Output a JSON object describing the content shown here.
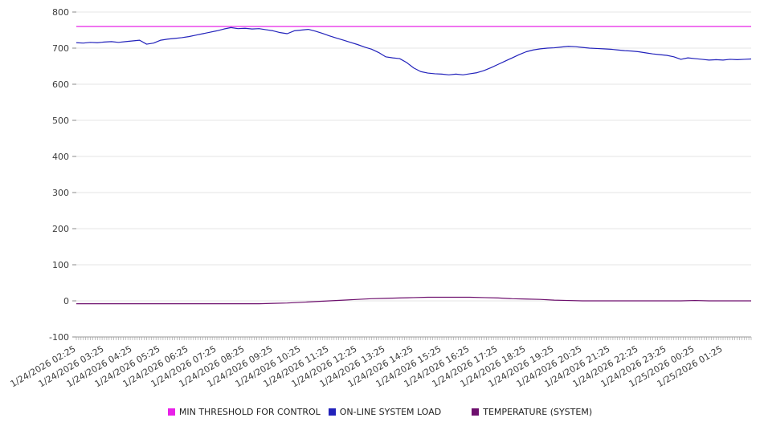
{
  "chart_data": {
    "type": "line",
    "title": "",
    "grid": true,
    "legend_position": "bottom",
    "background_color": "#ffffff",
    "x_axis": {
      "hours_span": 24,
      "tick_interval_hours": 1,
      "tick_labels": [
        "1/24/2026 02:25",
        "1/24/2026 03:25",
        "1/24/2026 04:25",
        "1/24/2026 05:25",
        "1/24/2026 06:25",
        "1/24/2026 07:25",
        "1/24/2026 08:25",
        "1/24/2026 09:25",
        "1/24/2026 10:25",
        "1/24/2026 11:25",
        "1/24/2026 12:25",
        "1/24/2026 13:25",
        "1/24/2026 14:25",
        "1/24/2026 15:25",
        "1/24/2026 16:25",
        "1/24/2026 17:25",
        "1/24/2026 18:25",
        "1/24/2026 19:25",
        "1/24/2026 20:25",
        "1/24/2026 21:25",
        "1/24/2026 22:25",
        "1/24/2026 23:25",
        "1/25/2026 00:25",
        "1/25/2026 01:25"
      ]
    },
    "y_axis": {
      "min": -100,
      "max": 800,
      "tick_step": 100,
      "tick_labels": [
        "800",
        "700",
        "600",
        "500",
        "400",
        "300",
        "200",
        "100",
        "0",
        "-100"
      ]
    },
    "series": [
      {
        "name": "MIN THRESHOLD FOR CONTROL",
        "color": "#e821e8",
        "value": 760
      },
      {
        "name": "ON-LINE SYSTEM LOAD",
        "color": "#2222bb",
        "step_hours": 0.25,
        "values": [
          715,
          714,
          716,
          715,
          717,
          718,
          716,
          718,
          720,
          722,
          711,
          714,
          722,
          725,
          727,
          729,
          732,
          736,
          740,
          744,
          748,
          753,
          757,
          754,
          755,
          753,
          754,
          751,
          748,
          743,
          740,
          748,
          750,
          752,
          747,
          741,
          734,
          728,
          722,
          716,
          710,
          703,
          697,
          688,
          676,
          673,
          671,
          660,
          645,
          635,
          631,
          629,
          628,
          626,
          628,
          626,
          629,
          632,
          638,
          646,
          655,
          664,
          673,
          682,
          690,
          695,
          698,
          700,
          701,
          703,
          705,
          704,
          702,
          700,
          699,
          698,
          697,
          695,
          693,
          692,
          690,
          687,
          684,
          682,
          680,
          676,
          669,
          673,
          671,
          669,
          667,
          668,
          667,
          669,
          668,
          669,
          670
        ]
      },
      {
        "name": "TEMPERATURE (SYSTEM)",
        "color": "#6d0f6d",
        "step_hours": 0.5,
        "values": [
          -8,
          -8,
          -8,
          -8,
          -8,
          -8,
          -8,
          -8,
          -8,
          -8,
          -8,
          -8,
          -8,
          -8,
          -7,
          -6,
          -4,
          -2,
          0,
          2,
          4,
          6,
          7,
          8,
          9,
          10,
          10,
          10,
          10,
          9,
          8,
          6,
          5,
          4,
          2,
          1,
          0,
          0,
          0,
          0,
          0,
          0,
          0,
          0,
          1,
          0,
          0,
          0,
          0
        ]
      }
    ]
  }
}
